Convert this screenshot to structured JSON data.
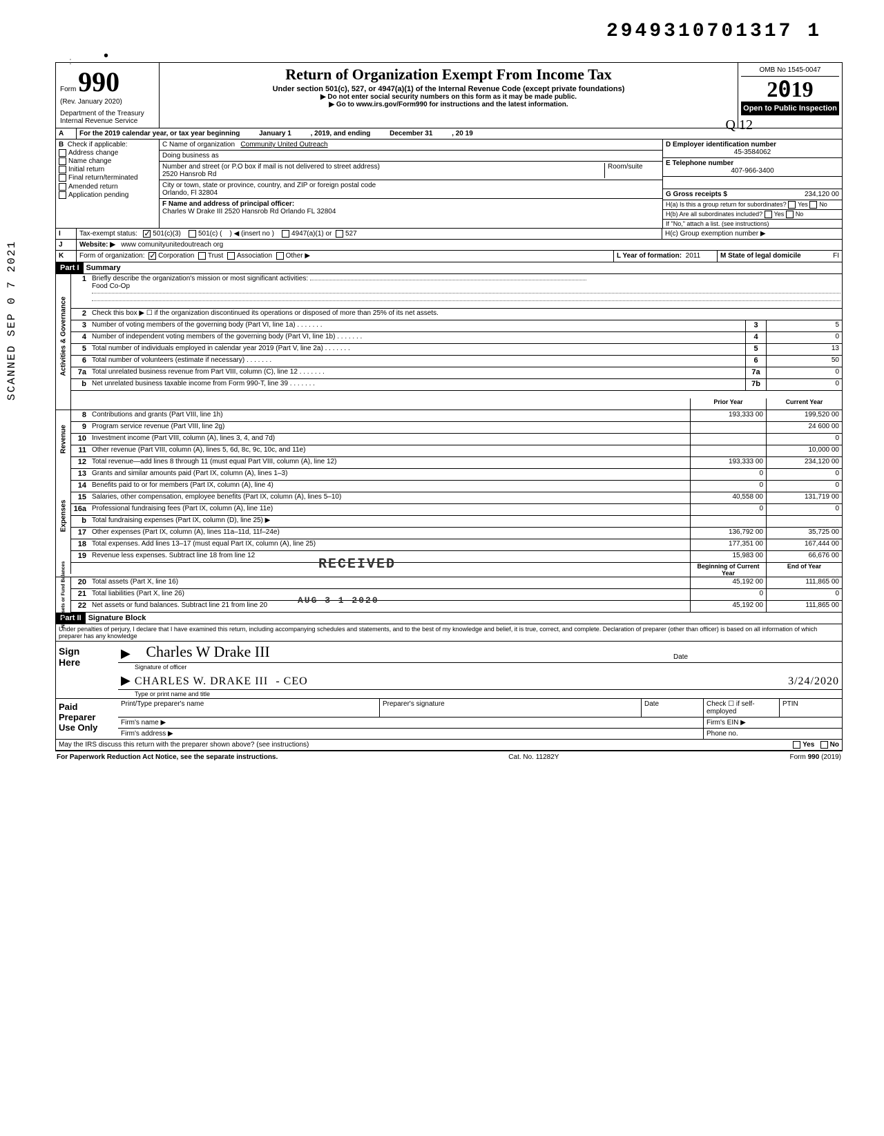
{
  "top_code": "2949310701317  1",
  "scanned_stamp": "SCANNED SEP 0 7 2021",
  "form": {
    "number_word": "Form",
    "number": "990",
    "rev": "(Rev. January 2020)",
    "dept": "Department of the Treasury\nInternal Revenue Service",
    "title": "Return of Organization Exempt From Income Tax",
    "subtitle": "Under section 501(c), 527, or 4947(a)(1) of the Internal Revenue Code (except private foundations)",
    "note1": "Do not enter social security numbers on this form as it may be made public.",
    "note2": "Go to www.irs.gov/Form990 for instructions and the latest information.",
    "omb": "OMB No 1545-0047",
    "year": "2019",
    "open": "Open to Public Inspection"
  },
  "hand_margin": {
    "q12": "Q 12",
    "slash": "112"
  },
  "A": {
    "label": "A",
    "text": "For the 2019 calendar year, or tax year beginning",
    "begin": "January 1",
    "mid": ", 2019, and ending",
    "end": "December 31",
    "yr": ", 20  19"
  },
  "B": {
    "label": "B",
    "heading": "Check if applicable:",
    "opts": [
      "Address change",
      "Name change",
      "Initial return",
      "Final return/terminated",
      "Amended return",
      "Application pending"
    ]
  },
  "C": {
    "label_name": "C Name of organization",
    "name": "Community United Outreach",
    "dba_label": "Doing business as",
    "street_label": "Number and street (or P.O box if mail is not delivered to street address)",
    "room_label": "Room/suite",
    "street": "2520 Hansrob Rd",
    "city_label": "City or town, state or province, country, and ZIP or foreign postal code",
    "city": "Orlando, Fl 32804",
    "F_label": "F Name and address of principal officer:",
    "F_value": "Charles W Drake III  2520 Hansrob Rd  Orlando FL  32804"
  },
  "D": {
    "label": "D Employer identification number",
    "value": "45-3584062"
  },
  "E": {
    "label": "E Telephone number",
    "value": "407-966-3400"
  },
  "G": {
    "label": "G Gross receipts $",
    "value": "234,120 00"
  },
  "H": {
    "a": "H(a) Is this a group return for subordinates?",
    "b": "H(b) Are all subordinates included?",
    "b_note": "If \"No,\" attach a list. (see instructions)",
    "c": "H(c) Group exemption number ▶",
    "yes": "Yes",
    "no": "No"
  },
  "I": {
    "label": "I",
    "text": "Tax-exempt status:",
    "opts": [
      "501(c)(3)",
      "501(c) (",
      ") ◀ (insert no )",
      "4947(a)(1) or",
      "527"
    ],
    "checked": 0
  },
  "J": {
    "label": "J",
    "text": "Website: ▶",
    "value": "www comunityunitedoutreach org"
  },
  "K": {
    "label": "K",
    "text": "Form of organization:",
    "opts": [
      "Corporation",
      "Trust",
      "Association",
      "Other ▶"
    ],
    "checked": 0,
    "L": "L Year of formation:",
    "L_val": "2011",
    "M": "M State of legal domicile",
    "M_val": "FI"
  },
  "part1": {
    "header": "Part I",
    "title": "Summary",
    "l1_label": "Briefly describe the organization's mission or most significant activities:",
    "l1_val": "Food Co-Op",
    "l2": "Check this box ▶ ☐ if the organization discontinued its operations or disposed of more than 25% of its net assets.",
    "lines_gov": [
      {
        "n": "3",
        "t": "Number of voting members of the governing body (Part VI, line 1a)",
        "box": "3",
        "v": "5"
      },
      {
        "n": "4",
        "t": "Number of independent voting members of the governing body (Part VI, line 1b)",
        "box": "4",
        "v": "0"
      },
      {
        "n": "5",
        "t": "Total number of individuals employed in calendar year 2019 (Part V, line 2a)",
        "box": "5",
        "v": "13"
      },
      {
        "n": "6",
        "t": "Total number of volunteers (estimate if necessary)",
        "box": "6",
        "v": "50"
      },
      {
        "n": "7a",
        "t": "Total unrelated business revenue from Part VIII, column (C), line 12",
        "box": "7a",
        "v": "0"
      },
      {
        "n": "b",
        "t": "Net unrelated business taxable income from Form 990-T, line 39",
        "box": "7b",
        "v": "0"
      }
    ],
    "col_prior": "Prior Year",
    "col_curr": "Current Year",
    "lines_rev": [
      {
        "n": "8",
        "t": "Contributions and grants (Part VIII, line 1h)",
        "p": "193,333 00",
        "c": "199,520 00"
      },
      {
        "n": "9",
        "t": "Program service revenue (Part VIII, line 2g)",
        "p": "",
        "c": "24 600 00"
      },
      {
        "n": "10",
        "t": "Investment income (Part VIII, column (A), lines 3, 4, and 7d)",
        "p": "",
        "c": "0"
      },
      {
        "n": "11",
        "t": "Other revenue (Part VIII, column (A), lines 5, 6d, 8c, 9c, 10c, and 11e)",
        "p": "",
        "c": "10,000 00"
      },
      {
        "n": "12",
        "t": "Total revenue—add lines 8 through 11 (must equal Part VIII, column (A), line 12)",
        "p": "193,333 00",
        "c": "234,120 00"
      }
    ],
    "lines_exp": [
      {
        "n": "13",
        "t": "Grants and similar amounts paid (Part IX, column (A), lines 1–3)",
        "p": "0",
        "c": "0"
      },
      {
        "n": "14",
        "t": "Benefits paid to or for members (Part IX, column (A), line 4)",
        "p": "0",
        "c": "0"
      },
      {
        "n": "15",
        "t": "Salaries, other compensation, employee benefits (Part IX, column (A), lines 5–10)",
        "p": "40,558 00",
        "c": "131,719 00"
      },
      {
        "n": "16a",
        "t": "Professional fundraising fees (Part IX, column (A), line 11e)",
        "p": "0",
        "c": "0"
      },
      {
        "n": "b",
        "t": "Total fundraising expenses (Part IX, column (D), line 25) ▶",
        "p": "",
        "c": ""
      },
      {
        "n": "17",
        "t": "Other expenses (Part IX, column (A), lines 11a–11d, 11f–24e)",
        "p": "136,792 00",
        "c": "35,725 00"
      },
      {
        "n": "18",
        "t": "Total expenses. Add lines 13–17 (must equal Part IX, column (A), line 25)",
        "p": "177,351 00",
        "c": "167,444 00"
      },
      {
        "n": "19",
        "t": "Revenue less expenses. Subtract line 18 from line 12",
        "p": "15,983 00",
        "c": "66,676 00"
      }
    ],
    "col_boy": "Beginning of Current Year",
    "col_eoy": "End of Year",
    "lines_net": [
      {
        "n": "20",
        "t": "Total assets (Part X, line 16)",
        "p": "45,192 00",
        "c": "111,865 00"
      },
      {
        "n": "21",
        "t": "Total liabilities (Part X, line 26)",
        "p": "0",
        "c": "0"
      },
      {
        "n": "22",
        "t": "Net assets or fund balances. Subtract line 21 from line 20",
        "p": "45,192 00",
        "c": "111,865 00"
      }
    ],
    "side_gov": "Activities & Governance",
    "side_rev": "Revenue",
    "side_exp": "Expenses",
    "side_net": "Net Assets or\nFund Balances"
  },
  "received": {
    "text": "RECEIVED",
    "date": "AUG 3 1 2020"
  },
  "part2": {
    "header": "Part II",
    "title": "Signature Block",
    "perjury": "Under penalties of perjury, I declare that I have examined this return, including accompanying schedules and statements, and to the best of my knowledge and belief, it is true, correct, and complete. Declaration of preparer (other than officer) is based on all information of which preparer has any knowledge",
    "sign": "Sign Here",
    "sig_label": "Signature of officer",
    "date_label": "Date",
    "name_label": "Type or print name and title",
    "name_val": "CHARLES W. DRAKE III",
    "title_val": "- CEO",
    "date_val": "3/24/2020",
    "paid": "Paid Preparer Use Only",
    "pp_name": "Print/Type preparer's name",
    "pp_sig": "Preparer's signature",
    "pp_date": "Date",
    "pp_check": "Check ☐ if self-employed",
    "ptin": "PTIN",
    "firm_name": "Firm's name   ▶",
    "firm_ein": "Firm's EIN ▶",
    "firm_addr": "Firm's address ▶",
    "phone": "Phone no.",
    "discuss": "May the IRS discuss this return with the preparer shown above? (see instructions)",
    "yes": "Yes",
    "no": "No"
  },
  "footer": {
    "left": "For Paperwork Reduction Act Notice, see the separate instructions.",
    "mid": "Cat. No. 11282Y",
    "right": "Form 990 (2019)"
  }
}
